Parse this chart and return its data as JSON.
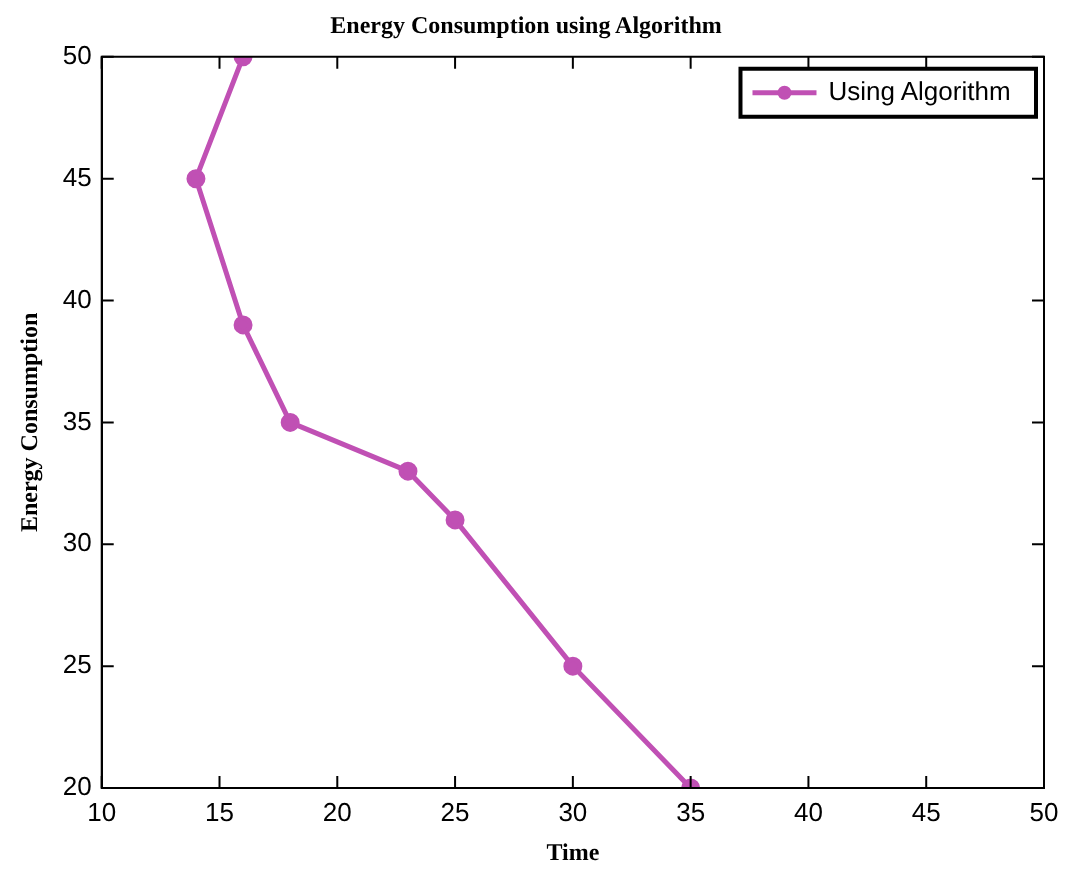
{
  "chart_data": {
    "type": "line",
    "title": "Energy Consumption using Algorithm",
    "xlabel": "Time",
    "ylabel": "Energy Consumption",
    "x": [
      16,
      14,
      16,
      18,
      23,
      25,
      30,
      35
    ],
    "series": [
      {
        "name": "Using Algorithm",
        "color": "#c050b4",
        "values": [
          50,
          45,
          39,
          35,
          33,
          31,
          25,
          20
        ]
      }
    ],
    "xlim": [
      10,
      50
    ],
    "xticks": [
      10,
      15,
      20,
      25,
      30,
      35,
      40,
      45,
      50
    ],
    "ylim": [
      20,
      50
    ],
    "yticks": [
      20,
      25,
      30,
      35,
      40,
      45,
      50
    ],
    "grid": false,
    "legend": "top right",
    "marker": "circle",
    "line_style": "solid"
  }
}
